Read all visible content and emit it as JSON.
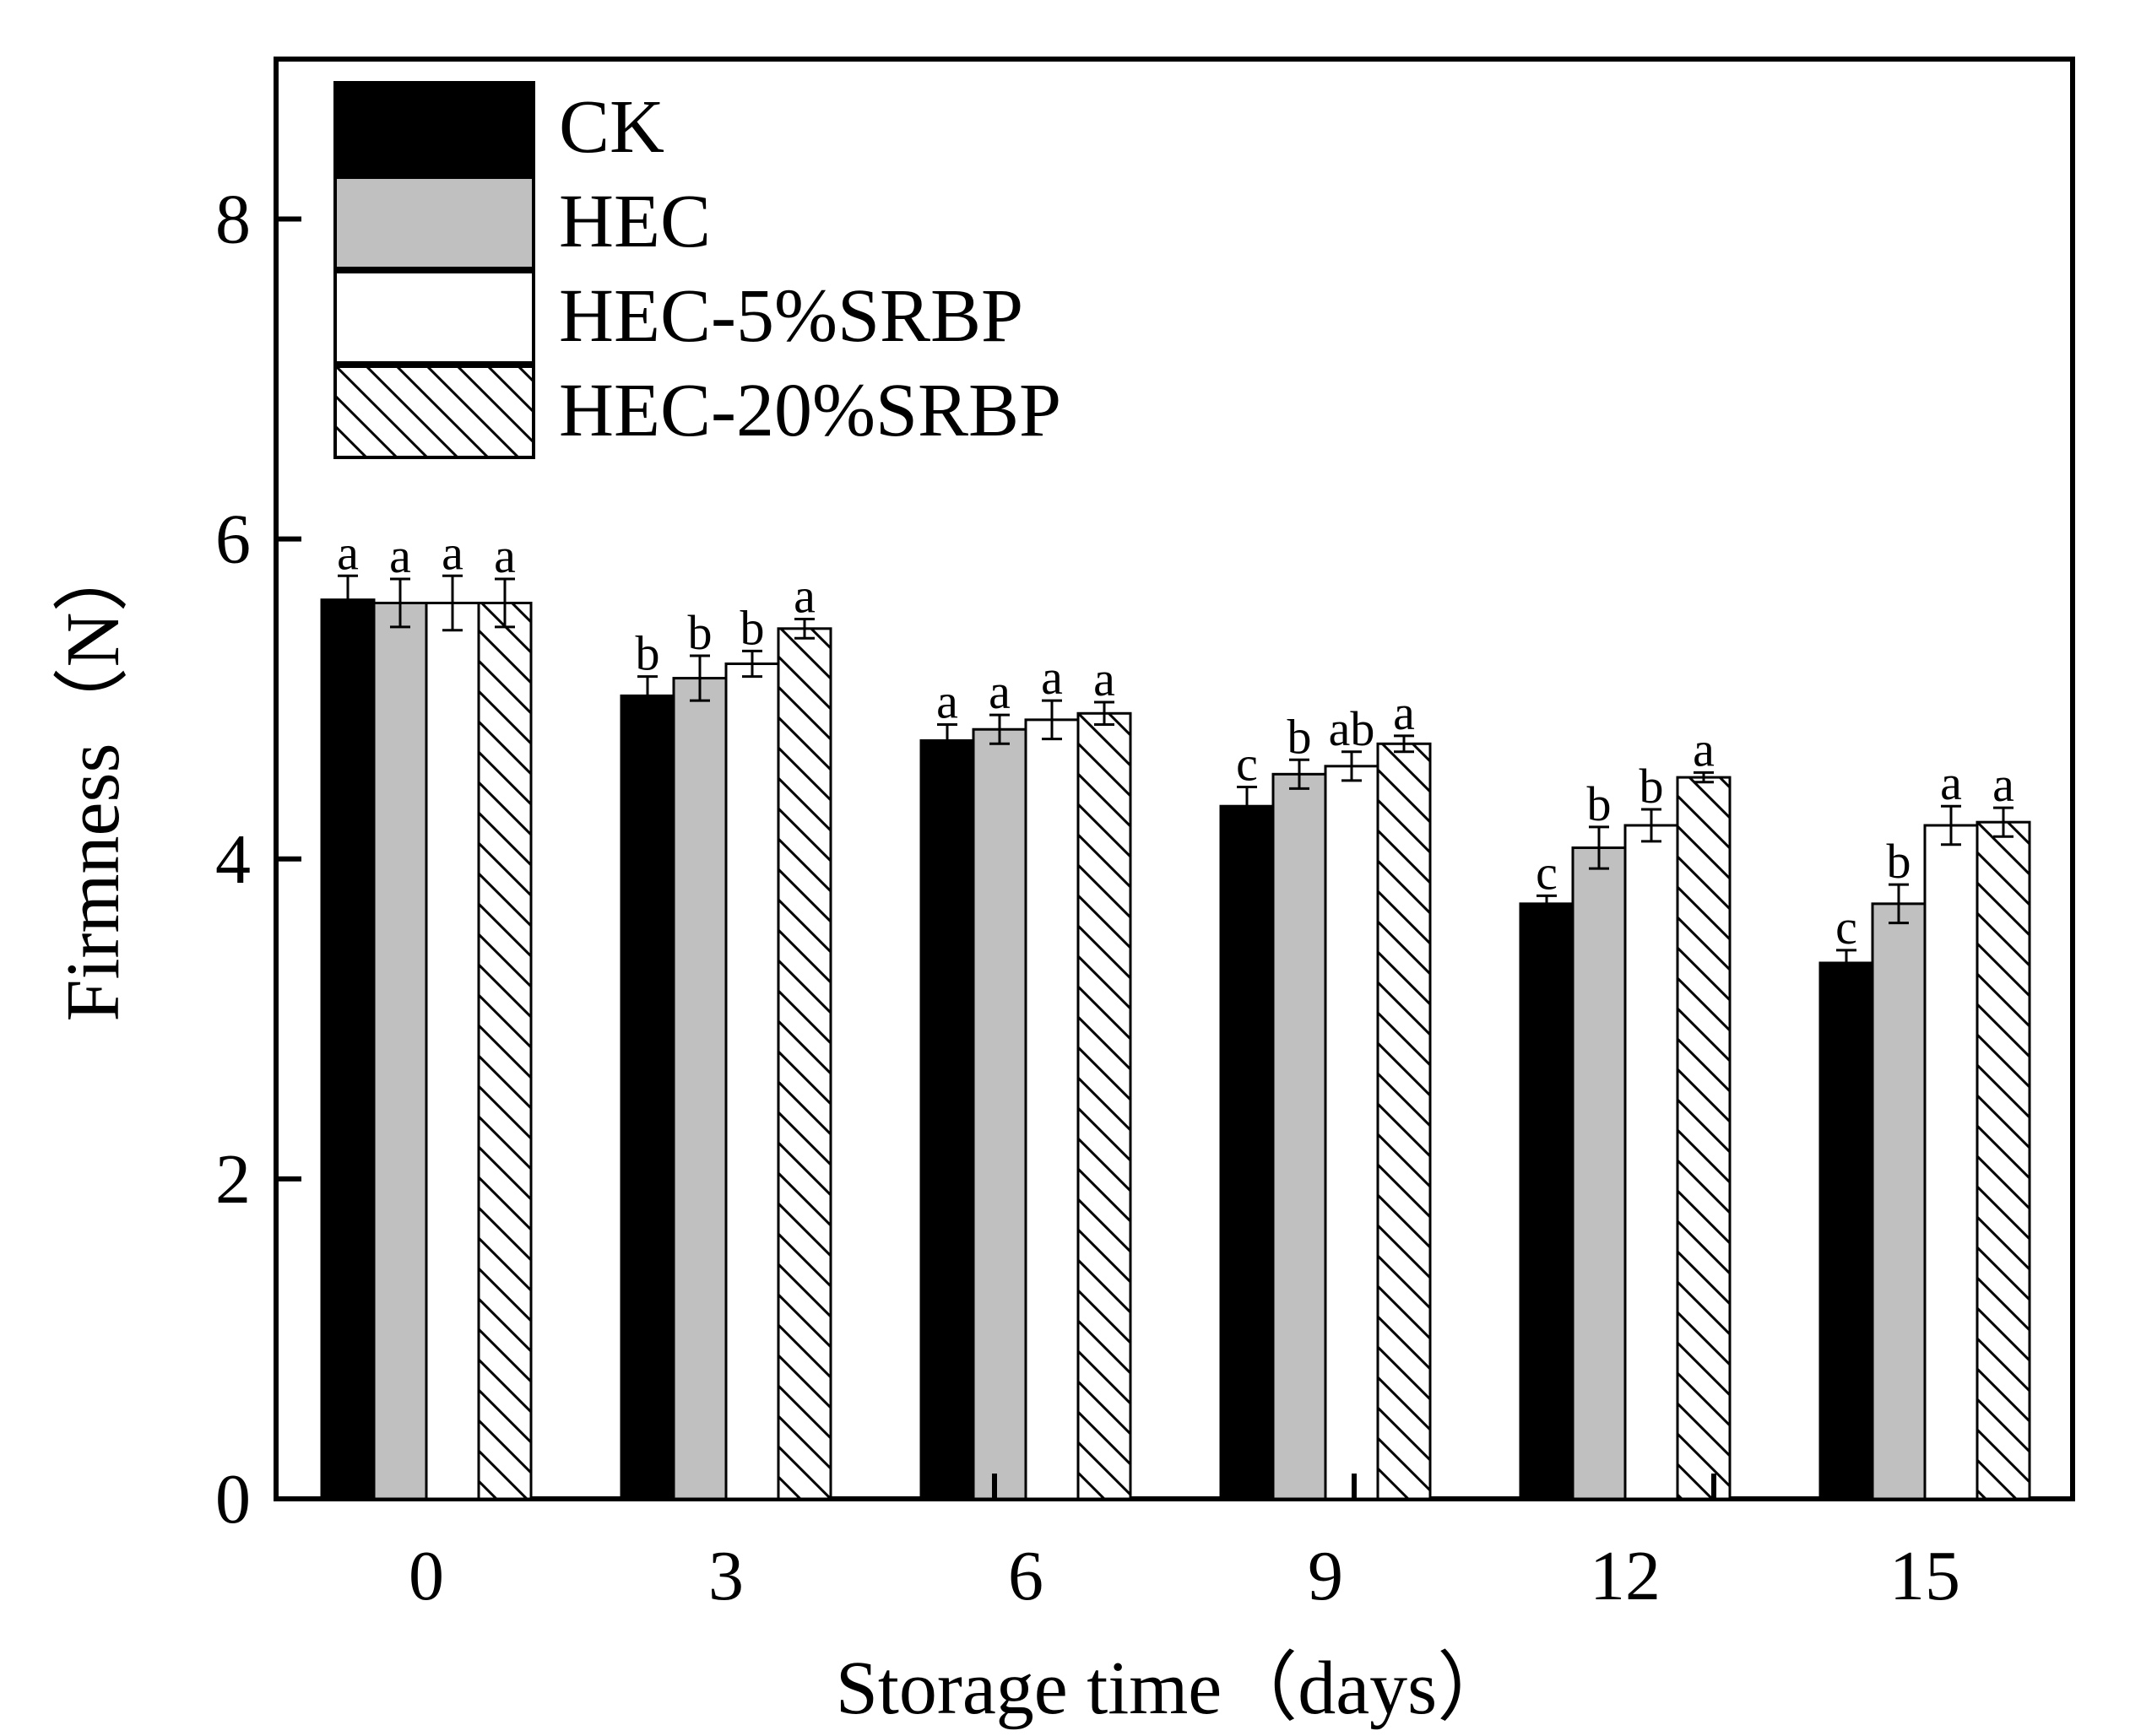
{
  "chart_data": {
    "type": "bar",
    "xlabel": "Storage time（days）",
    "ylabel": "Firmness（N）",
    "ylim": [
      0,
      9
    ],
    "yticks": [
      "0",
      "2",
      "4",
      "6",
      "8"
    ],
    "categories": [
      "0",
      "3",
      "6",
      "9",
      "12",
      "15"
    ],
    "grid": false,
    "legend_position": "top-left",
    "series": [
      {
        "name": "CK",
        "fill": "#000000",
        "pattern": "solid",
        "values": [
          5.62,
          5.02,
          4.74,
          4.33,
          3.72,
          3.35
        ],
        "errors": [
          0.15,
          0.12,
          0.1,
          0.12,
          0.05,
          0.08
        ],
        "labels": [
          "a",
          "b",
          "a",
          "c",
          "c",
          "c"
        ]
      },
      {
        "name": "HEC",
        "fill": "#c0c0c0",
        "pattern": "solid",
        "values": [
          5.6,
          5.13,
          4.81,
          4.53,
          4.07,
          3.72
        ],
        "errors": [
          0.15,
          0.14,
          0.09,
          0.09,
          0.13,
          0.12
        ],
        "labels": [
          "a",
          "b",
          "a",
          "b",
          "b",
          "b"
        ]
      },
      {
        "name": "HEC-5%SRBP",
        "fill": "#ffffff",
        "pattern": "solid",
        "values": [
          5.6,
          5.22,
          4.87,
          4.58,
          4.21,
          4.21
        ],
        "errors": [
          0.17,
          0.08,
          0.12,
          0.09,
          0.1,
          0.12
        ],
        "labels": [
          "a",
          "b",
          "a",
          "ab",
          "b",
          "a"
        ]
      },
      {
        "name": "HEC-20%SRBP",
        "fill": "#ffffff",
        "pattern": "hatch",
        "values": [
          5.6,
          5.44,
          4.91,
          4.72,
          4.51,
          4.23
        ],
        "errors": [
          0.15,
          0.06,
          0.07,
          0.05,
          0.03,
          0.09
        ],
        "labels": [
          "a",
          "a",
          "a",
          "a",
          "a",
          "a"
        ]
      }
    ]
  }
}
